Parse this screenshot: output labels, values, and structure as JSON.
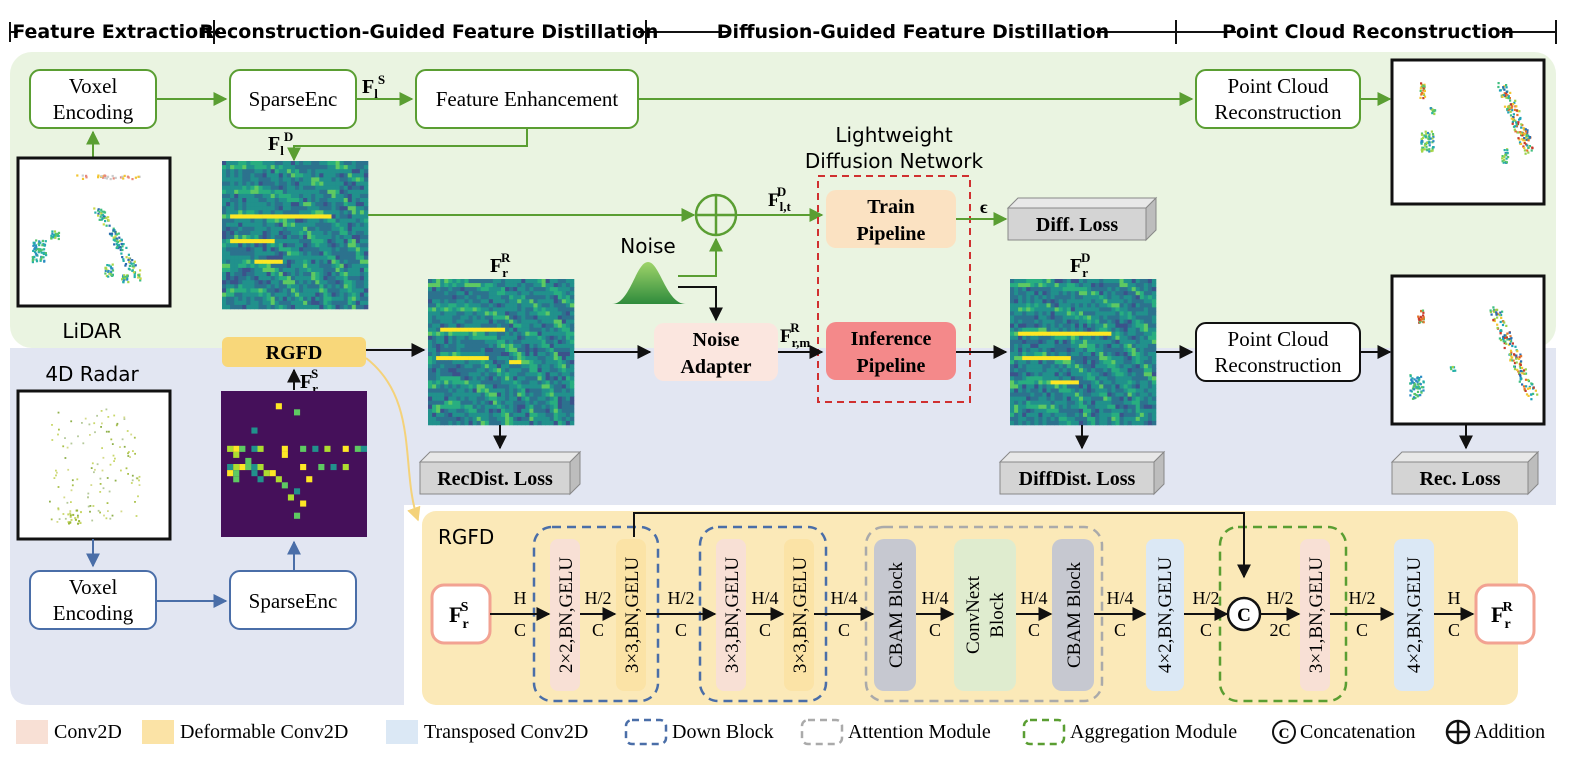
{
  "stages": [
    "Feature Extraction",
    "Reconstruction-Guided Feature Distillation",
    "Diffusion-Guided Feature Distillation",
    "Point Cloud Reconstruction"
  ],
  "top": {
    "voxel_encoding": [
      "Voxel",
      "Encoding"
    ],
    "sparse_enc": "SparseEnc",
    "feature_enhancement": "Feature Enhancement",
    "pc_recon": [
      "Point Cloud",
      "Reconstruction"
    ],
    "lidar_label": "LiDAR"
  },
  "middle": {
    "lightweight": [
      "Lightweight",
      "Diffusion Network"
    ],
    "train_pipeline": [
      "Train",
      "Pipeline"
    ],
    "inference_pipeline": [
      "Inference",
      "Pipeline"
    ],
    "noise": "Noise",
    "noise_adapter": [
      "Noise",
      "Adapter"
    ],
    "epsilon": "ϵ",
    "diff_loss": "Diff. Loss",
    "recdist_loss": "RecDist. Loss",
    "diffdist_loss": "DiffDist. Loss",
    "rec_loss": "Rec. Loss",
    "rgfd": "RGFD"
  },
  "bottom": {
    "radar_label": "4D Radar",
    "voxel_encoding": [
      "Voxel",
      "Encoding"
    ],
    "sparse_enc": "SparseEnc"
  },
  "rgfd_panel": {
    "title": "RGFD",
    "blocks": [
      "2×2,BN,GELU",
      "3×3,BN,GELU",
      "3×3,BN,GELU",
      "3×3,BN,GELU",
      "CBAM Block",
      "ConvNext Block",
      "CBAM Block",
      "4×2,BN,GELU",
      "3×1,BN,GELU",
      "4×2,BN,GELU"
    ],
    "concat_symbol": "C",
    "dims_top": [
      "H",
      "H/2",
      "H/2",
      "H/4",
      "H/4",
      "H/4",
      "H/4",
      "H/4",
      "H/2",
      "H/2",
      "H/2",
      "H"
    ],
    "dims_bottom": [
      "C",
      "C",
      "C",
      "C",
      "C",
      "C",
      "C",
      "C",
      "C",
      "2C",
      "C",
      "C"
    ]
  },
  "legend": [
    "Conv2D",
    "Deformable Conv2D",
    "Transposed Conv2D",
    "Down Block",
    "Attention Module",
    "Aggregation Module",
    "Concatenation",
    "Addition"
  ],
  "colors": {
    "green_bg": "#eaf4e1",
    "blue_bg": "#e2e6f2",
    "yellow_bg": "#fbe9b8",
    "conv2d": "#f8e0d5",
    "deform": "#fbe3a6",
    "transposed": "#dbe8f5",
    "green_line": "#5a9e32",
    "blue_line": "#4a6ea8",
    "red_dash": "#d03030"
  }
}
